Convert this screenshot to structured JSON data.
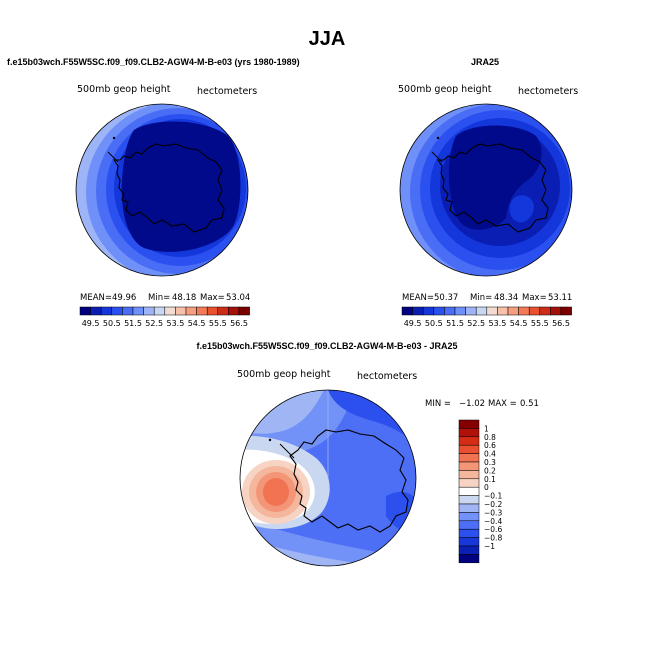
{
  "page": {
    "title": "JJA"
  },
  "colors": {
    "full_scale": [
      "#000080",
      "#0a1eb4",
      "#1437dc",
      "#2b50f0",
      "#4a6df6",
      "#6f90f8",
      "#9db4f6",
      "#c8d6f2",
      "#f2dcd2",
      "#f6c0aa",
      "#f59e80",
      "#f27a55",
      "#e9512e",
      "#cf2c17",
      "#a3110a",
      "#7a0000"
    ],
    "diff_scale": [
      "#000080",
      "#0b1fb5",
      "#1737d8",
      "#2b50ee",
      "#4d6ff5",
      "#7392f7",
      "#9fb5f4",
      "#c9d7f0",
      "#ffffff",
      "#f6d3c2",
      "#f4b69c",
      "#f39577",
      "#f17352",
      "#ea4f2f",
      "#d52c16",
      "#b0120a",
      "#840000"
    ]
  },
  "chart_data": [
    {
      "type": "heatmap",
      "projection": "south-polar stereographic",
      "title": "f.e15b03wch.F55W5SC.f09_f09.CLB2-AGW4-M-B-e03 (yrs 1980-1989)",
      "field_label": "500mb geop height",
      "units_label": "hectometers",
      "mean_text": "MEAN=",
      "mean": "49.96",
      "min_text": "Min=",
      "min": "48.18",
      "max_text": "Max=",
      "max": "53.04",
      "colorbar_ticks": [
        "49.5",
        "50.5",
        "51.5",
        "52.5",
        "53.5",
        "54.5",
        "55.5",
        "56.5"
      ],
      "contour_levels": [
        49.0,
        49.5,
        50.0,
        50.5,
        51.0,
        51.5,
        52.0,
        52.5,
        53.0,
        53.5,
        54.0,
        54.5,
        55.0,
        55.5,
        56.0,
        56.5
      ]
    },
    {
      "type": "heatmap",
      "projection": "south-polar stereographic",
      "title": "JRA25",
      "field_label": "500mb geop height",
      "units_label": "hectometers",
      "mean_text": "MEAN=",
      "mean": "50.37",
      "min_text": "Min=",
      "min": "48.34",
      "max_text": "Max=",
      "max": "53.11",
      "colorbar_ticks": [
        "49.5",
        "50.5",
        "51.5",
        "52.5",
        "53.5",
        "54.5",
        "55.5",
        "56.5"
      ],
      "contour_levels": [
        49.0,
        49.5,
        50.0,
        50.5,
        51.0,
        51.5,
        52.0,
        52.5,
        53.0,
        53.5,
        54.0,
        54.5,
        55.0,
        55.5,
        56.0,
        56.5
      ]
    },
    {
      "type": "heatmap",
      "projection": "south-polar stereographic",
      "title": "f.e15b03wch.F55W5SC.f09_f09.CLB2-AGW4-M-B-e03 - JRA25",
      "field_label": "500mb geop height",
      "units_label": "hectometers",
      "min_text": "MIN =",
      "min": "−1.02",
      "max_text": "MAX =",
      "max": "0.51",
      "colorbar_ticks": [
        "1",
        "0.8",
        "0.6",
        "0.4",
        "0.3",
        "0.2",
        "0.1",
        "0",
        "−0.1",
        "−0.2",
        "−0.3",
        "−0.4",
        "−0.6",
        "−0.8",
        "−1"
      ]
    }
  ]
}
